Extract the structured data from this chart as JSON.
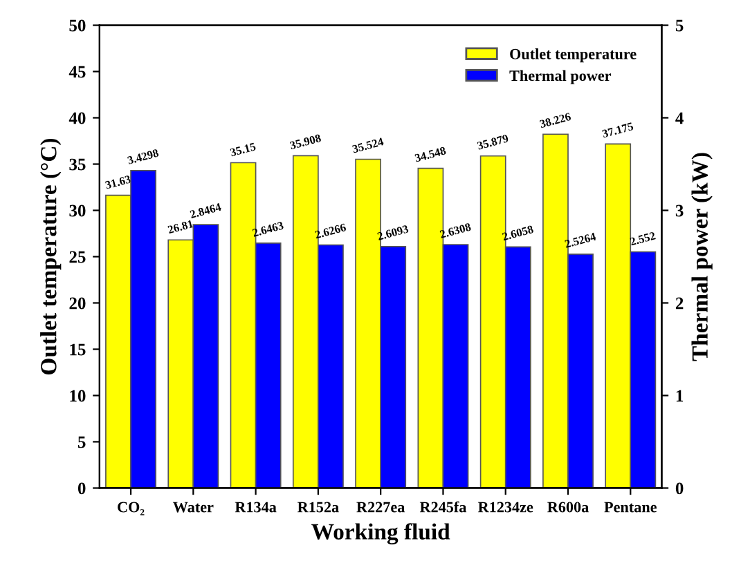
{
  "chart_data": {
    "type": "bar",
    "xlabel": "Working fluid",
    "ylabel": "Outlet temperature (°C)",
    "y2label": "Thermal power (kW)",
    "categories": [
      "CO₂",
      "Water",
      "R134a",
      "R152a",
      "R227ea",
      "R245fa",
      "R1234ze",
      "R600a",
      "Pentane"
    ],
    "series": [
      {
        "name": "Outlet temperature",
        "color": "#ffff00",
        "values": [
          31.63,
          26.81,
          35.15,
          35.908,
          35.524,
          34.548,
          35.879,
          38.226,
          37.175
        ]
      },
      {
        "name": "Thermal power",
        "color": "#0000ff",
        "axis": "y2",
        "values": [
          3.4298,
          2.8464,
          2.6463,
          2.6266,
          2.6093,
          2.6308,
          2.6058,
          2.5264,
          2.552
        ]
      }
    ],
    "ylim": [
      0,
      50
    ],
    "yticks": [
      0,
      5,
      10,
      15,
      20,
      25,
      30,
      35,
      40,
      45,
      50
    ],
    "y2lim": [
      0,
      5
    ],
    "y2ticks": [
      0,
      1,
      2,
      3,
      4,
      5
    ],
    "data_labels": true,
    "legend": "top right",
    "grid": false
  }
}
